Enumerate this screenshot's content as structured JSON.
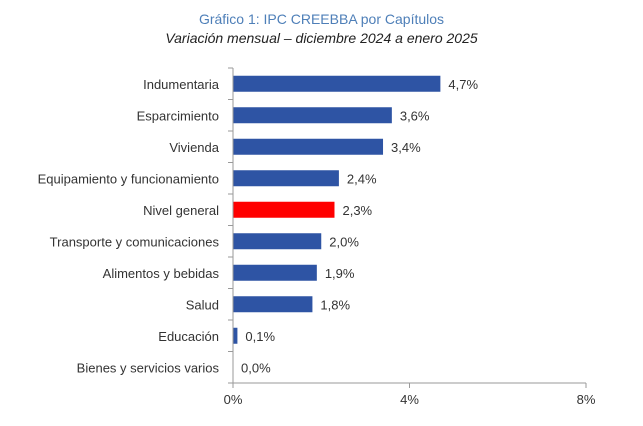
{
  "chart_data": {
    "type": "bar",
    "orientation": "horizontal",
    "title": "Gráfico 1: IPC CREEBBA por Capítulos",
    "subtitle": "Variación mensual – diciembre 2024 a enero 2025",
    "xlabel": "",
    "ylabel": "",
    "xlim": [
      0,
      8
    ],
    "ticks": [
      {
        "value": 0,
        "label": "0%"
      },
      {
        "value": 4,
        "label": "4%"
      },
      {
        "value": 8,
        "label": "8%"
      }
    ],
    "grid": false,
    "legend": "none",
    "categories": [
      "Indumentaria",
      "Esparcimiento",
      "Vivienda",
      "Equipamiento y funcionamiento",
      "Nivel general",
      "Transporte y comunicaciones",
      "Alimentos y bebidas",
      "Salud",
      "Educación",
      "Bienes y servicios varios"
    ],
    "values": [
      4.7,
      3.6,
      3.4,
      2.4,
      2.3,
      2.0,
      1.9,
      1.8,
      0.1,
      0.0
    ],
    "value_labels": [
      "4,7%",
      "3,6%",
      "3,4%",
      "2,4%",
      "2,3%",
      "2,0%",
      "1,9%",
      "1,8%",
      "0,1%",
      "0,0%"
    ],
    "highlight": "Nivel general",
    "colors": {
      "bar": "#2e54a4",
      "highlight": "#ff0000",
      "axis": "#9a9a9a",
      "text": "#333333"
    }
  }
}
